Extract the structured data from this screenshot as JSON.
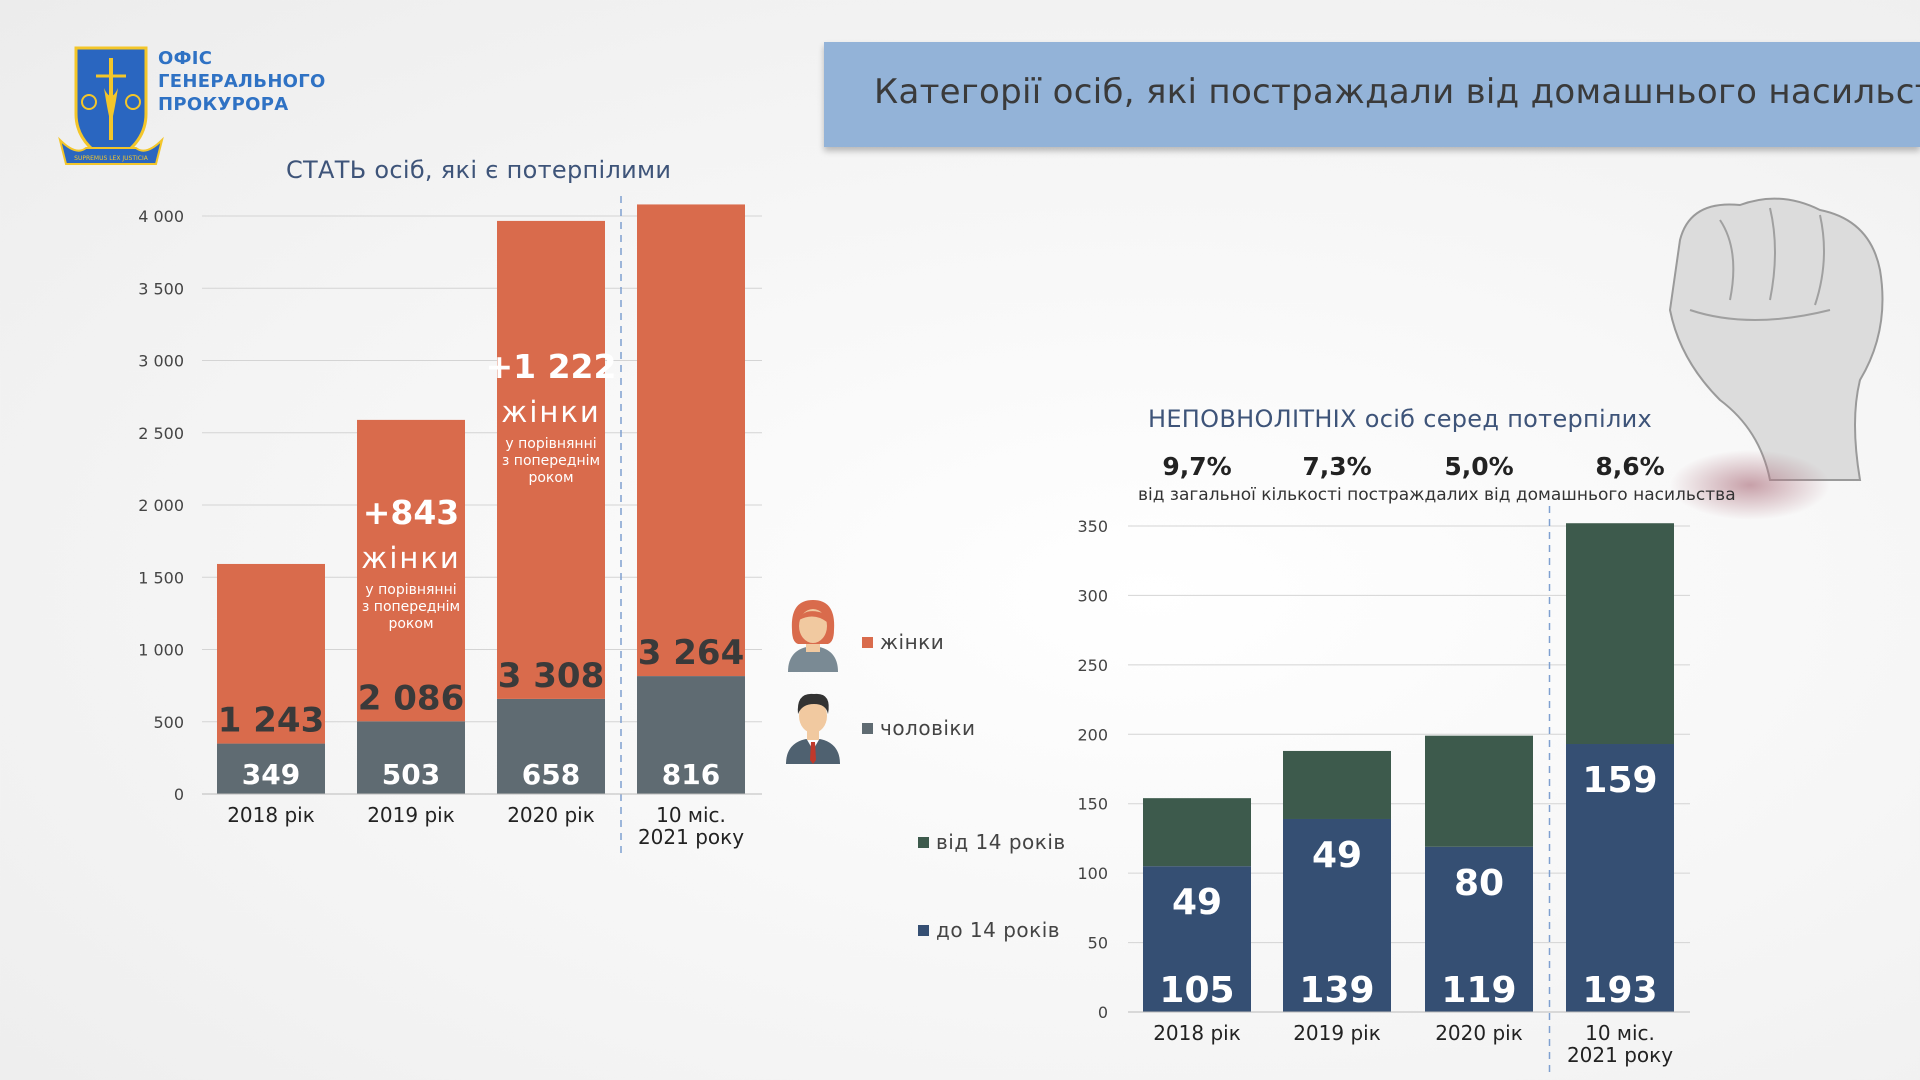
{
  "header": {
    "logo_lines": [
      "ОФІС",
      "ГЕНЕРАЛЬНОГО",
      "ПРОКУРОРА"
    ],
    "logo_motto": "SUPREMUS LEX JUSTICIA",
    "banner_title": "Категорії осіб, які постраждали від домашнього насильства"
  },
  "colors": {
    "women": "#d96b4c",
    "men": "#5f6b72",
    "age_14_plus": "#3d5a4c",
    "age_under_14": "#354f73",
    "banner": "#93b3d8",
    "title_text": "#3e5479"
  },
  "legend_gender": {
    "women_label": "жінки",
    "men_label": "чоловіки",
    "women_icon": "woman-avatar-icon",
    "men_icon": "man-avatar-icon"
  },
  "legend_age": {
    "age_14_plus_label": "від 14 років",
    "age_under_14_label": "до 14 років"
  },
  "minors_percent": {
    "values": [
      "9,7%",
      "7,3%",
      "5,0%",
      "8,6%"
    ],
    "note": "від загальної кількості постраждалих від домашнього насильства"
  },
  "chart_data": [
    {
      "type": "bar",
      "stacked": true,
      "title": "СТАТЬ осіб, які є потерпілими",
      "categories": [
        "2018 рік",
        "2019 рік",
        "2020 рік",
        "10 міс.\n2021 року"
      ],
      "series": [
        {
          "name": "чоловіки",
          "values": [
            349,
            503,
            658,
            816
          ],
          "labels": [
            "349",
            "503",
            "658",
            "816"
          ]
        },
        {
          "name": "жінки",
          "values": [
            1243,
            2086,
            3308,
            3264
          ],
          "labels": [
            "1 243",
            "2 086",
            "3 308",
            "3 264"
          ]
        }
      ],
      "ylim": [
        0,
        4000
      ],
      "yticks": [
        0,
        500,
        1000,
        1500,
        2000,
        2500,
        3000,
        3500,
        4000
      ],
      "ytick_labels": [
        "0",
        "500",
        "1 000",
        "1 500",
        "2 000",
        "2 500",
        "3 000",
        "3 500",
        "4 000"
      ],
      "grid": true,
      "annotations": [
        {
          "category": "2019 рік",
          "big": "+843",
          "word": "жінки",
          "small": [
            "у порівнянні",
            "з попереднім",
            "роком"
          ]
        },
        {
          "category": "2020 рік",
          "big": "+1 222",
          "word": "жінки",
          "small": [
            "у порівнянні",
            "з попереднім",
            "роком"
          ]
        }
      ]
    },
    {
      "type": "bar",
      "stacked": true,
      "title": "НЕПОВНОЛІТНІХ осіб серед потерпілих",
      "categories": [
        "2018 рік",
        "2019 рік",
        "2020 рік",
        "10 міс.\n2021 року"
      ],
      "series": [
        {
          "name": "до 14 років",
          "values": [
            105,
            139,
            119,
            193
          ],
          "labels": [
            "105",
            "139",
            "119",
            "193"
          ]
        },
        {
          "name": "від 14 років",
          "values": [
            49,
            49,
            80,
            159
          ],
          "labels": [
            "49",
            "49",
            "80",
            "159"
          ]
        }
      ],
      "ylim": [
        0,
        350
      ],
      "yticks": [
        0,
        50,
        100,
        150,
        200,
        250,
        300,
        350
      ],
      "ytick_labels": [
        "0",
        "50",
        "100",
        "150",
        "200",
        "250",
        "300",
        "350"
      ],
      "grid": true
    }
  ]
}
